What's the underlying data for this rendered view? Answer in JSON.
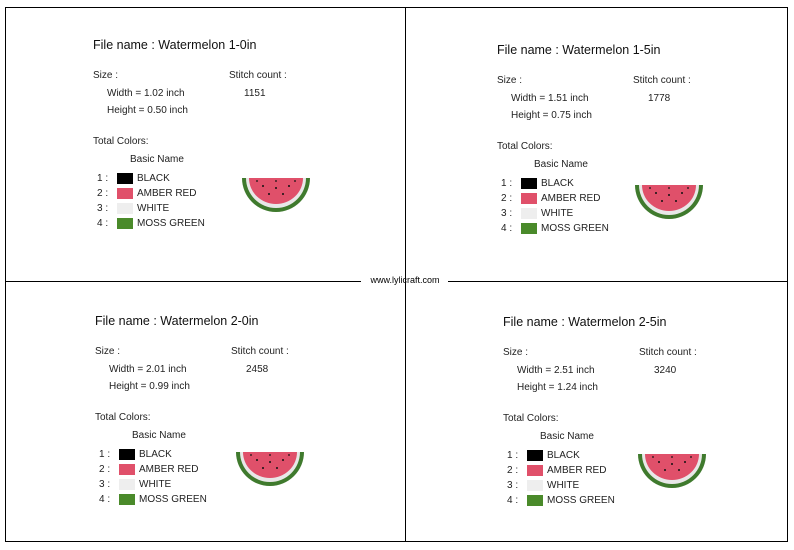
{
  "website": "www.lylicraft.com",
  "labels": {
    "size": "Size :",
    "stitch": "Stitch count :",
    "total_colors": "Total Colors:",
    "basic_name": "Basic Name"
  },
  "colors": [
    {
      "num": "1 :",
      "name": "BLACK",
      "hex": "#000000"
    },
    {
      "num": "2 :",
      "name": "AMBER RED",
      "hex": "#e0506a"
    },
    {
      "num": "3 :",
      "name": "WHITE",
      "hex": "#eeeeee"
    },
    {
      "num": "4 :",
      "name": "MOSS GREEN",
      "hex": "#4a8a2a"
    }
  ],
  "designs": [
    {
      "title": "File name : Watermelon 1-0in",
      "width": "Width  = 1.02 inch",
      "height": "Height = 0.50 inch",
      "stitch": "1151"
    },
    {
      "title": "File name : Watermelon 1-5in",
      "width": "Width  = 1.51 inch",
      "height": "Height = 0.75 inch",
      "stitch": "1778"
    },
    {
      "title": "File name : Watermelon 2-0in",
      "width": "Width  = 2.01 inch",
      "height": "Height = 0.99 inch",
      "stitch": "2458"
    },
    {
      "title": "File name : Watermelon 2-5in",
      "width": "Width  = 2.51 inch",
      "height": "Height = 1.24 inch",
      "stitch": "3240"
    }
  ]
}
